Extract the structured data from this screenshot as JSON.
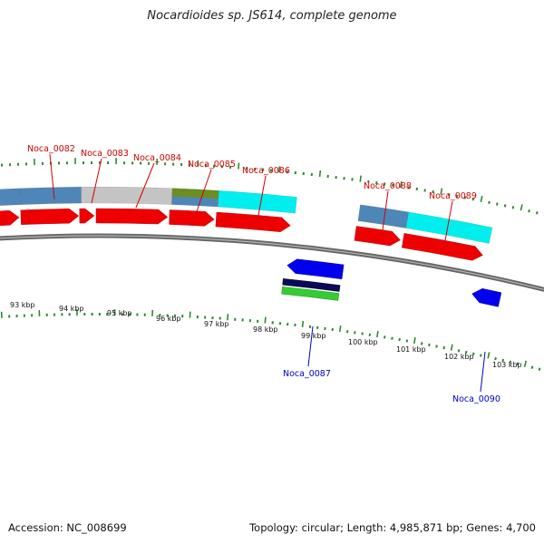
{
  "title": "Nocardioides sp. JS614, complete genome",
  "footer": {
    "accession": "Accession: NC_008699",
    "topology": "Topology: circular; Length: 4,985,871 bp; Genes: 4,700"
  },
  "colors": {
    "backbone": "#808080",
    "tick": "#2e8b2e",
    "cds_fwd": "#ee0000",
    "cds_rev": "#0000ee",
    "label_fwd": "#d40000",
    "label_rev": "#0000c8",
    "cog_steelblue": "#4f86b8",
    "cog_gray": "#c4c4c4",
    "cog_olive": "#6b8e23",
    "cog_cyan": "#00eeee",
    "cog_navy": "#0a0a5a",
    "cog_green": "#33cc33"
  },
  "scale_labels": [
    "93 kbp",
    "94 kbp",
    "95 kbp",
    "96 kbp",
    "97 kbp",
    "98 kbp",
    "99 kbp",
    "100 kbp",
    "101 kbp",
    "102 kbp",
    "103 kbp"
  ],
  "gene_labels_forward": [
    "Noca_0082",
    "Noca_0083",
    "Noca_0084",
    "Noca_0085",
    "Noca_0086",
    "Noca_0088",
    "Noca_0089"
  ],
  "gene_labels_reverse": [
    "Noca_0087",
    "Noca_0090"
  ]
}
